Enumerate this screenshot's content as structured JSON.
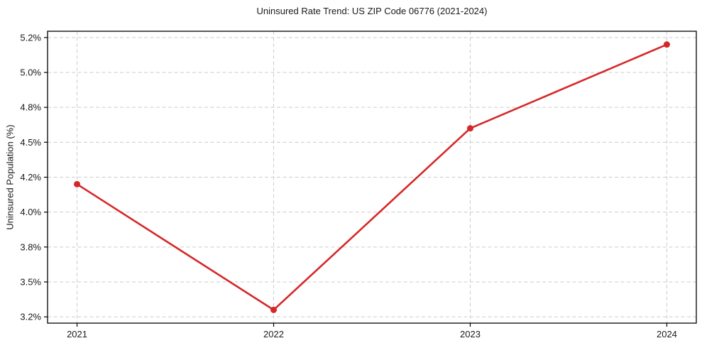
{
  "chart_data": {
    "type": "line",
    "title": "Uninsured Rate Trend: US ZIP Code 06776 (2021-2024)",
    "xlabel": "",
    "ylabel": "Uninsured Population (%)",
    "x": [
      2021,
      2022,
      2023,
      2024
    ],
    "x_tick_labels": [
      "2021",
      "2022",
      "2023",
      "2024"
    ],
    "values": [
      4.2,
      3.3,
      4.6,
      5.2
    ],
    "y_tick_values": [
      3.25,
      3.5,
      3.75,
      4.0,
      4.25,
      4.5,
      4.75,
      5.0,
      5.25
    ],
    "y_tick_labels": [
      "3.2%",
      "3.5%",
      "3.8%",
      "4.0%",
      "4.2%",
      "4.5%",
      "4.8%",
      "5.0%",
      "5.2%"
    ],
    "xlim": [
      2020.85,
      2024.15
    ],
    "ylim": [
      3.205,
      5.295
    ],
    "grid": "dashed-both-axes",
    "legend": "none",
    "marker": "circle",
    "colors": {
      "line": "#d62728",
      "marker": "#d62728",
      "grid": "#cccccc",
      "axis": "#000000",
      "text": "#1a1a1a",
      "background": "#ffffff"
    }
  }
}
